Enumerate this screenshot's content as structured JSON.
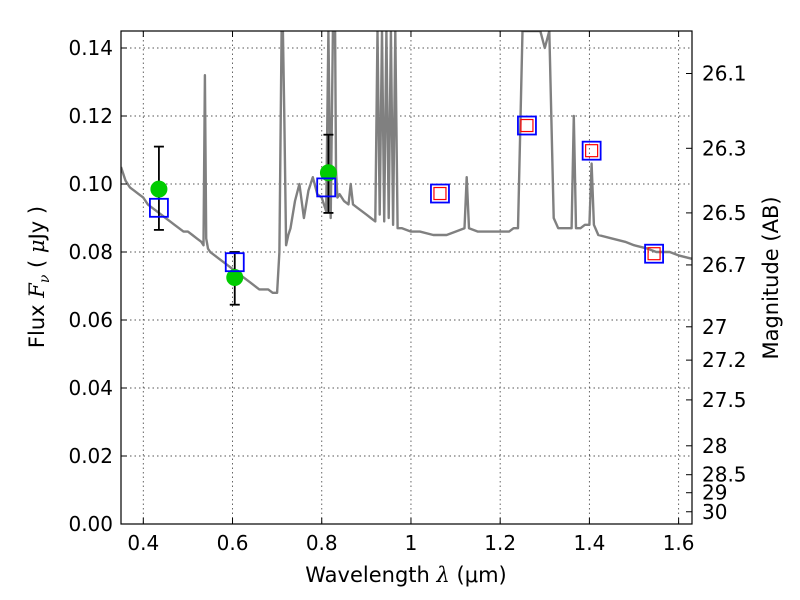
{
  "chart_data": {
    "type": "scatter",
    "xlabel": "Wavelength  λ (μm)",
    "xlabel_parts": {
      "text": "Wavelength",
      "symbol": "λ",
      "unit": "(μm)"
    },
    "ylabel": "Flux  Fν  ( μJy )",
    "ylabel_parts": {
      "text": "Flux",
      "symbol": "F",
      "sub": "ν",
      "unit_open": "(",
      "unit_mu": "μ",
      "unit": "Jy )"
    },
    "y2label": "Magnitude (AB)",
    "xlim": [
      0.35,
      1.63
    ],
    "ylim": [
      0.0,
      0.145
    ],
    "x_ticks": [
      0.4,
      0.6,
      0.8,
      1.0,
      1.2,
      1.4,
      1.6
    ],
    "x_tick_labels": [
      "0.4",
      "0.6",
      "0.8",
      "1",
      "1.2",
      "1.4",
      "1.6"
    ],
    "y_ticks": [
      0.0,
      0.02,
      0.04,
      0.06,
      0.08,
      0.1,
      0.12,
      0.14
    ],
    "y_tick_labels": [
      "0.00",
      "0.02",
      "0.04",
      "0.06",
      "0.08",
      "0.10",
      "0.12",
      "0.14"
    ],
    "y2_ticks": [
      {
        "label": "26.1",
        "flux": 0.1325
      },
      {
        "label": "26.3",
        "flux": 0.1105
      },
      {
        "label": "26.5",
        "flux": 0.0915
      },
      {
        "label": "26.7",
        "flux": 0.0762
      },
      {
        "label": "27",
        "flux": 0.058
      },
      {
        "label": "27.2",
        "flux": 0.0482
      },
      {
        "label": "27.5",
        "flux": 0.0365
      },
      {
        "label": "28",
        "flux": 0.023
      },
      {
        "label": "28.5",
        "flux": 0.0145
      },
      {
        "label": "29",
        "flux": 0.0092
      },
      {
        "label": "30",
        "flux": 0.0036
      }
    ],
    "grid": true,
    "series": [
      {
        "kind": "line",
        "color": "#808080",
        "x": [
          0.35,
          0.36,
          0.37,
          0.38,
          0.39,
          0.4,
          0.41,
          0.42,
          0.43,
          0.44,
          0.45,
          0.46,
          0.47,
          0.48,
          0.49,
          0.5,
          0.51,
          0.52,
          0.53,
          0.535,
          0.538,
          0.541,
          0.545,
          0.55,
          0.56,
          0.57,
          0.58,
          0.59,
          0.6,
          0.62,
          0.64,
          0.66,
          0.68,
          0.69,
          0.7,
          0.705,
          0.71,
          0.713,
          0.716,
          0.72,
          0.725,
          0.73,
          0.74,
          0.75,
          0.76,
          0.77,
          0.78,
          0.79,
          0.8,
          0.81,
          0.815,
          0.82,
          0.825,
          0.83,
          0.832,
          0.835,
          0.84,
          0.85,
          0.86,
          0.865,
          0.87,
          0.88,
          0.89,
          0.9,
          0.91,
          0.92,
          0.925,
          0.93,
          0.935,
          0.94,
          0.945,
          0.95,
          0.955,
          0.96,
          0.965,
          0.97,
          0.98,
          1.0,
          1.02,
          1.05,
          1.08,
          1.1,
          1.12,
          1.125,
          1.13,
          1.15,
          1.18,
          1.2,
          1.22,
          1.23,
          1.24,
          1.25,
          1.26,
          1.27,
          1.28,
          1.29,
          1.3,
          1.31,
          1.32,
          1.33,
          1.35,
          1.36,
          1.365,
          1.37,
          1.38,
          1.39,
          1.4,
          1.405,
          1.41,
          1.42,
          1.45,
          1.48,
          1.5,
          1.53,
          1.55,
          1.58,
          1.6,
          1.63
        ],
        "y": [
          0.105,
          0.101,
          0.099,
          0.098,
          0.097,
          0.096,
          0.094,
          0.093,
          0.092,
          0.091,
          0.09,
          0.089,
          0.088,
          0.087,
          0.086,
          0.086,
          0.085,
          0.084,
          0.083,
          0.082,
          0.132,
          0.084,
          0.081,
          0.08,
          0.079,
          0.078,
          0.077,
          0.076,
          0.075,
          0.073,
          0.071,
          0.069,
          0.069,
          0.068,
          0.068,
          0.08,
          0.145,
          0.145,
          0.12,
          0.082,
          0.085,
          0.087,
          0.095,
          0.1,
          0.09,
          0.098,
          0.102,
          0.097,
          0.096,
          0.092,
          0.145,
          0.09,
          0.145,
          0.145,
          0.104,
          0.096,
          0.097,
          0.095,
          0.094,
          0.1,
          0.094,
          0.093,
          0.092,
          0.091,
          0.09,
          0.089,
          0.145,
          0.091,
          0.145,
          0.089,
          0.145,
          0.09,
          0.145,
          0.088,
          0.145,
          0.087,
          0.087,
          0.086,
          0.086,
          0.085,
          0.085,
          0.086,
          0.087,
          0.102,
          0.087,
          0.086,
          0.086,
          0.086,
          0.086,
          0.087,
          0.087,
          0.145,
          0.145,
          0.145,
          0.145,
          0.145,
          0.14,
          0.145,
          0.09,
          0.087,
          0.087,
          0.087,
          0.12,
          0.087,
          0.087,
          0.088,
          0.088,
          0.106,
          0.088,
          0.085,
          0.084,
          0.083,
          0.082,
          0.081,
          0.08,
          0.08,
          0.079,
          0.078
        ]
      },
      {
        "kind": "points",
        "marker": "circle",
        "color": "#00cc00",
        "x": [
          0.435,
          0.605,
          0.815
        ],
        "y": [
          0.0985,
          0.0725,
          0.1033
        ],
        "yerr_low": [
          0.0865,
          0.0645,
          0.0915
        ],
        "yerr_high": [
          0.111,
          0.08,
          0.1145
        ]
      },
      {
        "kind": "points",
        "marker": "square-open",
        "color": "#0000ff",
        "x": [
          0.435,
          0.605,
          0.81,
          1.065,
          1.26,
          1.405,
          1.545
        ],
        "y": [
          0.093,
          0.077,
          0.099,
          0.0972,
          0.1172,
          0.1098,
          0.0795
        ]
      },
      {
        "kind": "points",
        "marker": "square-open",
        "color": "#ff0000",
        "x": [
          1.065,
          1.26,
          1.405,
          1.545
        ],
        "y": [
          0.0972,
          0.1172,
          0.1098,
          0.0795
        ]
      }
    ]
  }
}
